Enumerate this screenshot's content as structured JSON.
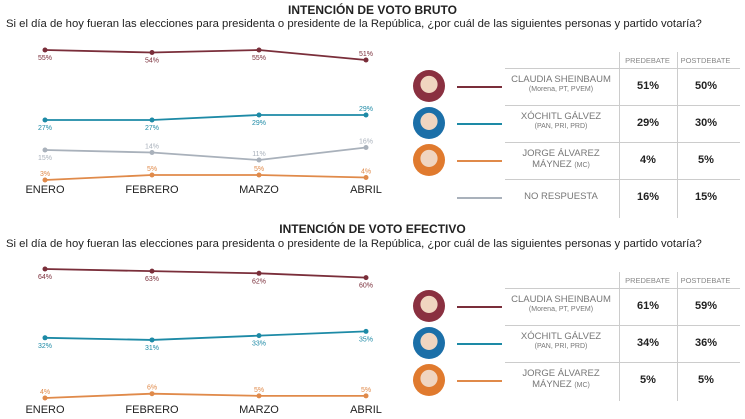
{
  "chart_data": [
    {
      "type": "line",
      "title": "INTENCIÓN DE VOTO BRUTO",
      "question": "Si el día de hoy fueran las elecciones para presidenta o presidente de la República, ¿por cuál de las siguientes personas y partido votaría?",
      "categories": [
        "ENERO",
        "FEBRERO",
        "MARZO",
        "ABRIL"
      ],
      "series": [
        {
          "name": "CLAUDIA SHEINBAUM",
          "party": "(Morena, PT, PVEM)",
          "color": "#7a2e3a",
          "values": [
            55,
            54,
            55,
            51
          ],
          "labels": [
            "55%",
            "54%",
            "55%",
            "51%"
          ],
          "predebate": "51%",
          "postdebate": "50%",
          "photo": "#8a3040"
        },
        {
          "name": "XÓCHITL GÁLVEZ",
          "party": "(PAN, PRI, PRD)",
          "color": "#1d8aa6",
          "values": [
            27,
            27,
            29,
            29
          ],
          "labels": [
            "27%",
            "27%",
            "29%",
            "29%"
          ],
          "predebate": "29%",
          "postdebate": "30%",
          "photo": "#1b6fa8"
        },
        {
          "name": "JORGE ÁLVAREZ MÁYNEZ",
          "party": "(MC)",
          "color": "#e08a4a",
          "values": [
            3,
            5,
            5,
            4
          ],
          "labels": [
            "3%",
            "5%",
            "5%",
            "4%"
          ],
          "predebate": "4%",
          "postdebate": "5%",
          "photo": "#e07a2e"
        },
        {
          "name": "NO RESPUESTA",
          "party": "",
          "color": "#a9b1bb",
          "values": [
            15,
            14,
            11,
            16
          ],
          "labels": [
            "15%",
            "14%",
            "11%",
            "16%"
          ],
          "predebate": "16%",
          "postdebate": "15%"
        }
      ],
      "table_headers": [
        "PREDEBATE",
        "POSTDEBATE"
      ]
    },
    {
      "type": "line",
      "title": "INTENCIÓN DE VOTO EFECTIVO",
      "question": "Si el día de hoy fueran las elecciones para presidenta o presidente de la República, ¿por cuál de las siguientes personas y partido votaría?",
      "categories": [
        "ENERO",
        "FEBRERO",
        "MARZO",
        "ABRIL"
      ],
      "series": [
        {
          "name": "CLAUDIA SHEINBAUM",
          "party": "(Morena, PT, PVEM)",
          "color": "#7a2e3a",
          "values": [
            64,
            63,
            62,
            60
          ],
          "labels": [
            "64%",
            "63%",
            "62%",
            "60%"
          ],
          "predebate": "61%",
          "postdebate": "59%",
          "photo": "#8a3040"
        },
        {
          "name": "XÓCHITL GÁLVEZ",
          "party": "(PAN, PRI, PRD)",
          "color": "#1d8aa6",
          "values": [
            32,
            31,
            33,
            35
          ],
          "labels": [
            "32%",
            "31%",
            "33%",
            "35%"
          ],
          "predebate": "34%",
          "postdebate": "36%",
          "photo": "#1b6fa8"
        },
        {
          "name": "JORGE ÁLVAREZ MÁYNEZ",
          "party": "(MC)",
          "color": "#e08a4a",
          "values": [
            4,
            6,
            5,
            5
          ],
          "labels": [
            "4%",
            "6%",
            "5%",
            "5%"
          ],
          "predebate": "5%",
          "postdebate": "5%",
          "photo": "#e07a2e"
        }
      ],
      "table_headers": [
        "PREDEBATE",
        "POSTDEBATE"
      ]
    }
  ]
}
